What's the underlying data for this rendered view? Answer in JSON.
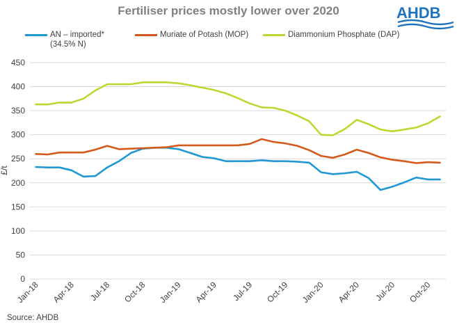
{
  "header": {
    "title": "Fertiliser prices mostly lower over 2020",
    "logo_text": "AHDB"
  },
  "footer": {
    "source": "Source: AHDB"
  },
  "colors": {
    "an": "#1f98d4",
    "mop": "#d35a1c",
    "dap": "#bed62f",
    "gridline": "#d9d9d9",
    "logo": "#1e73be"
  },
  "chart_data": {
    "type": "line",
    "title": "Fertiliser prices mostly lower over 2020",
    "xlabel": "",
    "ylabel": "£/t",
    "ylim": [
      0,
      450
    ],
    "yticks": [
      "0",
      "50",
      "100",
      "150",
      "200",
      "250",
      "300",
      "350",
      "400",
      "450"
    ],
    "grid": true,
    "legend_position": "top",
    "x_tick_labels": [
      "Jan-18",
      "Apr-18",
      "Jul-18",
      "Oct-18",
      "Jan-19",
      "Apr-19",
      "Jul-19",
      "Oct-19",
      "Jan-20",
      "Apr-20",
      "Jul-20",
      "Oct-20"
    ],
    "x": [
      "Jan-18",
      "Feb-18",
      "Mar-18",
      "Apr-18",
      "May-18",
      "Jun-18",
      "Jul-18",
      "Aug-18",
      "Sep-18",
      "Oct-18",
      "Nov-18",
      "Dec-18",
      "Jan-19",
      "Feb-19",
      "Mar-19",
      "Apr-19",
      "May-19",
      "Jun-19",
      "Jul-19",
      "Aug-19",
      "Sep-19",
      "Oct-19",
      "Nov-19",
      "Dec-19",
      "Jan-20",
      "Feb-20",
      "Mar-20",
      "Apr-20",
      "May-20",
      "Jun-20",
      "Jul-20",
      "Aug-20",
      "Sep-20",
      "Oct-20",
      "Nov-20"
    ],
    "series": [
      {
        "name": "AN – imported*",
        "name_sub": "(34.5% N)",
        "values": [
          233,
          232,
          232,
          226,
          213,
          214,
          232,
          245,
          262,
          271,
          273,
          273,
          270,
          262,
          254,
          251,
          245,
          245,
          245,
          247,
          245,
          245,
          244,
          242,
          222,
          218,
          220,
          223,
          210,
          185,
          192,
          201,
          211,
          207,
          207
        ]
      },
      {
        "name": "Muriate of Potash (MOP)",
        "values": [
          260,
          259,
          263,
          263,
          263,
          269,
          277,
          270,
          271,
          272,
          273,
          274,
          278,
          278,
          278,
          278,
          278,
          278,
          281,
          291,
          285,
          282,
          277,
          268,
          256,
          252,
          259,
          269,
          262,
          253,
          248,
          245,
          241,
          243,
          242
        ]
      },
      {
        "name": "Diammonium Phosphate (DAP)",
        "values": [
          363,
          363,
          367,
          367,
          375,
          392,
          405,
          405,
          405,
          409,
          409,
          409,
          407,
          403,
          398,
          393,
          386,
          376,
          365,
          357,
          356,
          350,
          340,
          328,
          300,
          299,
          312,
          331,
          322,
          311,
          307,
          311,
          315,
          324,
          338
        ]
      }
    ]
  }
}
